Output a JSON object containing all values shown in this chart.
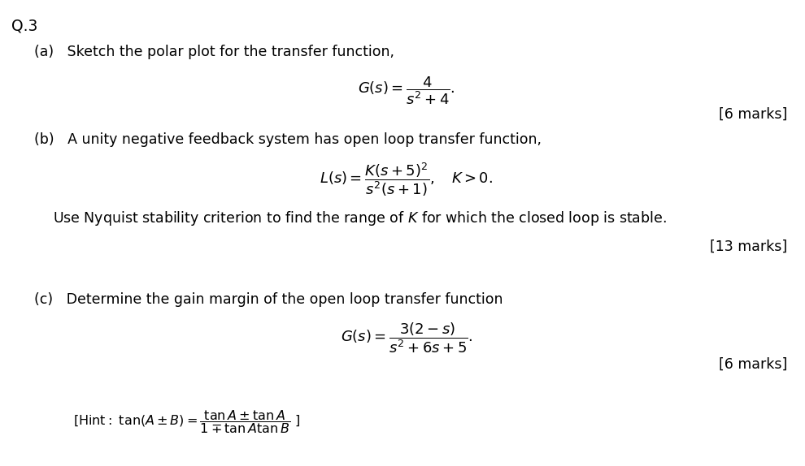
{
  "background_color": "#ffffff",
  "question_number": "Q.3",
  "part_a_text": "(a)   Sketch the polar plot for the transfer function,",
  "part_a_marks": "[6 marks]",
  "part_b_text": "(b)   A unity negative feedback system has open loop transfer function,",
  "part_b_sub": "Use Nyquist stability criterion to find the range of $K$ for which the closed loop is stable.",
  "part_b_marks": "[13 marks]",
  "part_c_text": "(c)   Determine the gain margin of the open loop transfer function",
  "part_c_marks": "[6 marks]",
  "fs_body": 12.5,
  "fs_math": 13.0,
  "fs_qnum": 13.5
}
